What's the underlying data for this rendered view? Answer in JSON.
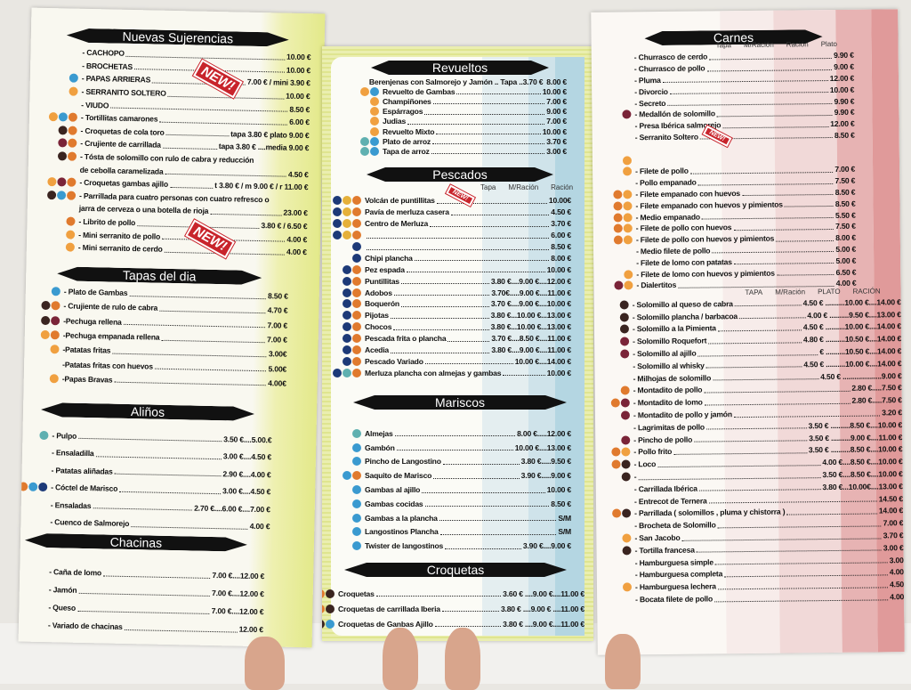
{
  "icon_colors": {
    "o": "#e07a2e",
    "b": "#3a9ad0",
    "r": "#7a2438",
    "d": "#3a2420",
    "n": "#1d3a78",
    "y": "#e5b03a",
    "t": "#5fb0b0",
    "c": "#f0a040"
  },
  "badges": {
    "new": "NEW!"
  },
  "left": {
    "nuevas": {
      "title": "Nuevas Sujerencias",
      "items": [
        {
          "i": "",
          "n": "- CACHOPO",
          "p": "10.00 €"
        },
        {
          "i": "",
          "n": "- BROCHETAS",
          "p": "10.00 €"
        },
        {
          "i": "b",
          "n": "- PAPAS ARRIERAS",
          "p": "7.00 € / mini 3.90 €"
        },
        {
          "i": "c",
          "n": "- SERRANITO SOLTERO",
          "p": "10.00 €"
        },
        {
          "i": "",
          "n": "- VIUDO",
          "p": "8.50 €"
        },
        {
          "i": "cbo",
          "n": "- Tortillitas camarones",
          "p": "6.00 €"
        },
        {
          "i": "do",
          "n": "- Croquetas de cola toro",
          "p": "tapa 3.80 € plato 9.00 €"
        },
        {
          "i": "ro",
          "n": "- Crujiente de carrillada",
          "p": "tapa 3.80 € ....media 9.00 €"
        },
        {
          "i": "do",
          "n": "- Tósta de solomillo con rulo de cabra y reducción",
          "p": ""
        },
        {
          "i": "",
          "n": "de cebolla caramelizada",
          "p": "4.50 €"
        },
        {
          "i": "cro",
          "n": "- Croquetas gambas ajillo",
          "p": "t 3.80 € / m 9.00 € / r 11.00 €"
        },
        {
          "i": "dbo",
          "n": "- Parrillada para cuatro personas con cuatro refresco o",
          "p": ""
        },
        {
          "i": "",
          "n": "jarra de cerveza o una botella de rioja",
          "p": "23.00 €"
        },
        {
          "i": "o",
          "n": "- Librito de pollo",
          "p": "3.80 € / 6.50 €"
        },
        {
          "i": "c",
          "n": "- Mini serranito de pollo",
          "p": "4.00 €"
        },
        {
          "i": "c",
          "n": "- Mini serranito de cerdo",
          "p": "4.00 €"
        }
      ]
    },
    "tapas": {
      "title": "Tapas del dia",
      "items": [
        {
          "i": "b",
          "n": "- Plato de Gambas",
          "p": "8.50 €"
        },
        {
          "i": "do",
          "n": "- Crujiente de rulo de cabra",
          "p": "4.70 €"
        },
        {
          "i": "dr",
          "n": "-Pechuga rellena",
          "p": "7.00 €"
        },
        {
          "i": "co",
          "n": "-Pechuga empanada rellena",
          "p": "7.00 €"
        },
        {
          "i": "c",
          "n": "-Patatas fritas",
          "p": "3.00€"
        },
        {
          "i": "",
          "n": "-Patatas fritas con huevos",
          "p": "5.00€"
        },
        {
          "i": "c",
          "n": "-Papas Bravas",
          "p": "4.00€"
        }
      ]
    },
    "alinos": {
      "title": "Aliños",
      "items": [
        {
          "i": "t",
          "n": "- Pulpo",
          "p": "3.50 €....5.00.€"
        },
        {
          "i": "",
          "n": "- Ensaladilla",
          "p": "3.00 €....4.50 €"
        },
        {
          "i": "",
          "n": "- Patatas aliñadas",
          "p": "2.90 €....4.00 €"
        },
        {
          "i": "obn",
          "n": "- Cóctel de Marisco",
          "p": "3.00 €....4.50 €"
        },
        {
          "i": "",
          "n": "- Ensaladas",
          "p": "2.70 €....6.00 €....7.00 €"
        },
        {
          "i": "",
          "n": "- Cuenco de Salmorejo",
          "p": "4.00 €"
        }
      ]
    },
    "chacinas": {
      "title": "Chacinas",
      "items": [
        {
          "i": "",
          "n": "- Caña de lomo",
          "p": "7.00 €....12.00 €"
        },
        {
          "i": "",
          "n": "- Jamón",
          "p": "7.00 €....12.00 €"
        },
        {
          "i": "",
          "n": "- Queso",
          "p": "7.00 €....12.00 €"
        },
        {
          "i": "",
          "n": "- Variado de chacinas",
          "p": "12.00 €"
        }
      ]
    }
  },
  "middle": {
    "revueltos": {
      "title": "Revueltos",
      "items": [
        {
          "i": "",
          "n": "Berenjenas con Salmorejo y Jamón .. Tapa ..3.70 €",
          "p": "8.00 €"
        },
        {
          "i": "cb",
          "n": "Revuelto de Gambas",
          "p": "10.00 €"
        },
        {
          "i": "c",
          "n": "Champiñones",
          "p": "7.00 €"
        },
        {
          "i": "c",
          "n": "Espárragos",
          "p": "9.00 €"
        },
        {
          "i": "c",
          "n": "Judias",
          "p": "7.00 €"
        },
        {
          "i": "c",
          "n": "Revuelto Mixto",
          "p": "10.00 €"
        },
        {
          "i": "tb",
          "n": "Plato de arroz",
          "p": "3.70 €"
        },
        {
          "i": "tb",
          "n": "Tapa de arroz",
          "p": "3.00 €"
        }
      ]
    },
    "pescados": {
      "title": "Pescados",
      "columns": [
        "Tapa",
        "M/Ración",
        "Ración"
      ],
      "items": [
        {
          "i": "nyo",
          "n": "Volcán de puntillitas",
          "p": "10.00€"
        },
        {
          "i": "nyo",
          "n": "Pavía de merluza casera",
          "p": "4.50 €"
        },
        {
          "i": "nyo",
          "n": "Centro de Merluza",
          "p": "3.70 €"
        },
        {
          "i": "nyo",
          "n": "",
          "p": "6.00 €"
        },
        {
          "i": "n",
          "n": "",
          "p": "8.50 €"
        },
        {
          "i": "n",
          "n": "Chipi plancha",
          "p": "8.00 €"
        },
        {
          "i": "no",
          "n": "Pez espada",
          "p": "10.00 €"
        },
        {
          "i": "no",
          "n": "Puntillitas",
          "p": "3.80 €....9.00 €....12.00 €"
        },
        {
          "i": "no",
          "n": "Adobos",
          "p": "3.70€.....9.00 €....11.00 €"
        },
        {
          "i": "no",
          "n": "Boquerón",
          "p": "3.70 €....9.00 €....10.00 €"
        },
        {
          "i": "no",
          "n": "Pijotas",
          "p": "3.80 €...10.00 €...13.00 €"
        },
        {
          "i": "no",
          "n": "Chocos",
          "p": "3.80 €...10.00 €...13.00 €"
        },
        {
          "i": "no",
          "n": "Pescada frita o plancha",
          "p": "3.70 €....8.50 €....11.00 €"
        },
        {
          "i": "no",
          "n": "Acedia",
          "p": "3.80 €....9.00 €....11.00 €"
        },
        {
          "i": "no",
          "n": "Pescado Variado",
          "p": "10.00 €....14.00 €"
        },
        {
          "i": "nto",
          "n": "Merluza plancha con almejas y gambas",
          "p": "10.00 €"
        }
      ]
    },
    "mariscos": {
      "title": "Mariscos",
      "items": [
        {
          "i": "t",
          "n": "Almejas",
          "p": "8.00 €.....12.00 €"
        },
        {
          "i": "b",
          "n": "Gambón",
          "p": "10.00 €....13.00 €"
        },
        {
          "i": "b",
          "n": "Pincho de Langostino",
          "p": "3.80 €.....9.50 €"
        },
        {
          "i": "bo",
          "n": "Saquito de Marisco",
          "p": "3.90 €.....9.00 €"
        },
        {
          "i": "b",
          "n": "Gambas al ajillo",
          "p": "10.00 €"
        },
        {
          "i": "b",
          "n": "Gambas cocidas",
          "p": "8.50 €"
        },
        {
          "i": "b",
          "n": "Gambas a la plancha",
          "p": "S/M"
        },
        {
          "i": "b",
          "n": "Langostinos Plancha",
          "p": "S/M"
        },
        {
          "i": "b",
          "n": "Twister de langostinos",
          "p": "3.90 €....9.00 €"
        }
      ]
    },
    "croquetas": {
      "title": "Croquetas",
      "items": [
        {
          "i": "od",
          "n": "Croquetas",
          "p": "3.60 € ....9.00 €....11.00 €"
        },
        {
          "i": "od",
          "n": "Croquetas de carrillada Iberia",
          "p": "3.80 € ....9.00 € ....11.00 €"
        },
        {
          "i": "odb",
          "n": "Croquetas de Ganbas Ajillo",
          "p": "3.80 € ....9.00 €....11.00 €"
        }
      ]
    }
  },
  "right": {
    "carnes": {
      "title": "Carnes",
      "columns": [
        "Tapa",
        "M/Ración",
        "Ración",
        "Plato"
      ],
      "items": [
        {
          "i": "",
          "n": "- Churrasco de cerdo",
          "p": "9.90 €"
        },
        {
          "i": "",
          "n": "- Churrasco de pollo",
          "p": "9.00 €"
        },
        {
          "i": "",
          "n": "- Pluma",
          "p": "12.00 €"
        },
        {
          "i": "",
          "n": "- Divorcio",
          "p": "10.00 €"
        },
        {
          "i": "",
          "n": "- Secreto",
          "p": "9.90 €"
        },
        {
          "i": "r",
          "n": "- Medallón de solomillo",
          "p": "9.90 €"
        },
        {
          "i": "",
          "n": "- Presa Ibérica salmorejo",
          "p": "12.00 €"
        },
        {
          "i": "",
          "n": "- Serranito Soltero",
          "p": "8.50 €"
        },
        {
          "i": "",
          "n": "",
          "p": ""
        },
        {
          "i": "c",
          "n": "",
          "p": ""
        },
        {
          "i": "c",
          "n": "- Filete de pollo",
          "p": "7.00 €"
        },
        {
          "i": "",
          "n": "- Pollo empanado",
          "p": "7.50 €"
        },
        {
          "i": "oc",
          "n": "- Filete empanado con huevos",
          "p": "8.50 €"
        },
        {
          "i": "oc",
          "n": "- Filete empanado con huevos y pimientos",
          "p": "8.50 €"
        },
        {
          "i": "oc",
          "n": "- Medio empanado",
          "p": "5.50 €"
        },
        {
          "i": "oc",
          "n": "- Filete de pollo con huevos",
          "p": "7.50 €"
        },
        {
          "i": "oc",
          "n": "- Filete de pollo con huevos y pimientos",
          "p": "8.00 €"
        },
        {
          "i": "",
          "n": "- Medio filete de pollo",
          "p": "5.00 €"
        },
        {
          "i": "",
          "n": "- Filete de lomo con patatas",
          "p": "5.00 €"
        },
        {
          "i": "c",
          "n": "- Filete de lomo con huevos y pimientos",
          "p": "6.50 €"
        },
        {
          "i": "rc",
          "n": "- Dialertitos",
          "p": "4.00 €"
        }
      ]
    },
    "carnes2": {
      "columns": [
        "TAPA",
        "M/Ración",
        "PLATO",
        "RACIÓN"
      ],
      "items": [
        {
          "i": "d",
          "n": "- Solomillo al queso de cabra",
          "p": "4.50 € ..........10.00 €....14.00 €"
        },
        {
          "i": "d",
          "n": "- Solomillo plancha / barbacoa",
          "p": "4.00 € ..........9.50 €....13.00 €"
        },
        {
          "i": "d",
          "n": "- Solomillo a la Pimienta",
          "p": "4.50 € ..........10.00 €....14.00 €"
        },
        {
          "i": "r",
          "n": "- Solomillo Roquefort",
          "p": "4.80 € ..........10.50 €....14.00 €"
        },
        {
          "i": "r",
          "n": "- Solomillo al ajillo",
          "p": "€ ..........10.50 €....14.00 €"
        },
        {
          "i": "",
          "n": "- Solomillo al whisky",
          "p": "4.50 € ..........10.00 €....14.00 €"
        },
        {
          "i": "",
          "n": "- Milhojas de solomillo",
          "p": "4.50 € ....................9.00 €"
        },
        {
          "i": "o",
          "n": "- Montadito de pollo",
          "p": "2.80 €.....7.50 €"
        },
        {
          "i": "or",
          "n": "- Montadito de lomo",
          "p": "2.80 €.....7.50 €"
        },
        {
          "i": "r",
          "n": "- Montadito de pollo y jamón",
          "p": "3.20 €"
        },
        {
          "i": "",
          "n": "- Lagrimitas de pollo",
          "p": "3.50 € ..........8.50 €....10.00 €"
        },
        {
          "i": "r",
          "n": "- Pincho de pollo",
          "p": "3.50 € ..........9.00 €....11.00 €"
        },
        {
          "i": "oc",
          "n": "- Pollo frito",
          "p": "3.50 € ..........8.50 €....10.00 €"
        },
        {
          "i": "od",
          "n": "- Loco",
          "p": "4.00 €....8.50 €....10.00 €"
        },
        {
          "i": "d",
          "n": "-",
          "p": "3.50 €....8.50 €....10.00 €"
        },
        {
          "i": "",
          "n": "- Carrillada Ibérica",
          "p": "3.80 €...10.00€....13.00 €"
        },
        {
          "i": "",
          "n": "- Entrecot de Ternera",
          "p": "14.50 €"
        },
        {
          "i": "od",
          "n": "- Parrillada ( solomillos , pluma y chistorra )",
          "p": "14.00 €"
        },
        {
          "i": "",
          "n": "- Brocheta de Solomillo",
          "p": "7.00 €"
        },
        {
          "i": "c",
          "n": "- San Jacobo",
          "p": "3.70 €"
        },
        {
          "i": "d",
          "n": "- Tortilla francesa",
          "p": "3.00 €"
        },
        {
          "i": "",
          "n": "- Hamburguesa simple",
          "p": "3.00"
        },
        {
          "i": "",
          "n": "- Hamburguesa completa",
          "p": "4.00"
        },
        {
          "i": "c",
          "n": "- Hamburguesa lechera",
          "p": "4.50"
        },
        {
          "i": "",
          "n": "- Bocata filete de pollo",
          "p": "4.00"
        }
      ]
    }
  }
}
